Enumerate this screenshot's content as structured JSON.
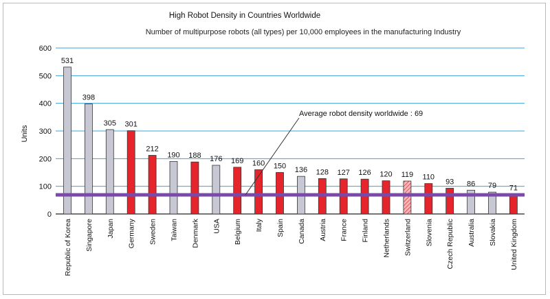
{
  "chart_data": {
    "type": "bar",
    "title": "High Robot Density in Countries Worldwide",
    "subtitle": "Number of multipurpose robots (all types) per 10,000 employees in the manufacturing Industry",
    "ylabel": "Units",
    "ylim": [
      0,
      600
    ],
    "yticks": [
      "0",
      "100",
      "200",
      "300",
      "400",
      "500",
      "600"
    ],
    "grid": true,
    "categories": [
      "Republic of Korea",
      "Singapore",
      "Japan",
      "Germany",
      "Sweden",
      "Taiwan",
      "Denmark",
      "USA",
      "Belgium",
      "Italy",
      "Spain",
      "Canada",
      "Austria",
      "France",
      "Finland",
      "Netherlands",
      "Switzerland",
      "Slovenia",
      "Czech Republic",
      "Australia",
      "Slovakia",
      "United Kingdom"
    ],
    "values": [
      531,
      398,
      305,
      301,
      212,
      190,
      188,
      176,
      169,
      160,
      150,
      136,
      128,
      127,
      126,
      120,
      119,
      110,
      93,
      86,
      79,
      71
    ],
    "value_labels": [
      "531",
      "398",
      "305",
      "301",
      "212",
      "190",
      "188",
      "176",
      "169",
      "160",
      "150",
      "136",
      "128",
      "127",
      "126",
      "120",
      "119",
      "110",
      "93",
      "86",
      "79",
      "71"
    ],
    "bar_styles": [
      "grey",
      "grey",
      "grey",
      "red",
      "red",
      "grey",
      "red",
      "grey",
      "red",
      "red",
      "red",
      "grey",
      "red",
      "red",
      "red",
      "red",
      "hatched",
      "red",
      "red",
      "grey",
      "grey",
      "red"
    ],
    "reference_line": {
      "value": 69,
      "label": "Average robot density worldwide : 69"
    },
    "colors": {
      "red": "#e5252b",
      "grey": "#c8c8d4",
      "grid": "#3aa0d8",
      "average": "#7a4aa8",
      "hatch": "#e5252b"
    }
  }
}
